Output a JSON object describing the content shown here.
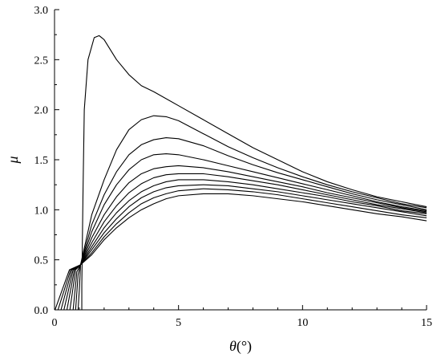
{
  "chart_data": {
    "type": "line",
    "xlabel_symbol": "θ",
    "xlabel_unit": "(°)",
    "ylabel": "μ",
    "xlim": [
      0,
      15
    ],
    "ylim": [
      0,
      3.0
    ],
    "x_ticks": [
      0,
      5,
      10,
      15
    ],
    "y_ticks": [
      "0.0",
      "0.5",
      "1.0",
      "1.5",
      "2.0",
      "2.5",
      "3.0"
    ],
    "grid": false,
    "legend": "none",
    "series": [
      {
        "points": [
          [
            1.1,
            0.0
          ],
          [
            1.1,
            0.25
          ],
          [
            1.15,
            1.2
          ],
          [
            1.2,
            2.0
          ],
          [
            1.35,
            2.5
          ],
          [
            1.6,
            2.72
          ],
          [
            1.8,
            2.74
          ],
          [
            2.0,
            2.7
          ],
          [
            2.5,
            2.5
          ],
          [
            3.0,
            2.35
          ],
          [
            3.5,
            2.24
          ],
          [
            4.0,
            2.18
          ],
          [
            5.0,
            2.04
          ],
          [
            6.0,
            1.9
          ],
          [
            7.0,
            1.76
          ],
          [
            8.0,
            1.62
          ],
          [
            9.0,
            1.5
          ],
          [
            10.0,
            1.38
          ],
          [
            11.0,
            1.28
          ],
          [
            12.0,
            1.2
          ],
          [
            13.0,
            1.13
          ],
          [
            14.0,
            1.08
          ],
          [
            15.0,
            1.03
          ]
        ]
      },
      {
        "points": [
          [
            0.95,
            0.0
          ],
          [
            1.0,
            0.2
          ],
          [
            1.05,
            0.45
          ],
          [
            1.5,
            0.95
          ],
          [
            2.0,
            1.3
          ],
          [
            2.5,
            1.6
          ],
          [
            3.0,
            1.8
          ],
          [
            3.5,
            1.9
          ],
          [
            4.0,
            1.94
          ],
          [
            4.5,
            1.93
          ],
          [
            5.0,
            1.89
          ],
          [
            6.0,
            1.76
          ],
          [
            7.0,
            1.63
          ],
          [
            8.0,
            1.52
          ],
          [
            9.0,
            1.42
          ],
          [
            10.0,
            1.33
          ],
          [
            11.0,
            1.25
          ],
          [
            12.0,
            1.18
          ],
          [
            13.0,
            1.12
          ],
          [
            14.0,
            1.06
          ],
          [
            15.0,
            1.02
          ]
        ]
      },
      {
        "points": [
          [
            0.85,
            0.0
          ],
          [
            0.95,
            0.35
          ],
          [
            1.05,
            0.45
          ],
          [
            1.5,
            0.85
          ],
          [
            2.0,
            1.15
          ],
          [
            2.5,
            1.38
          ],
          [
            3.0,
            1.55
          ],
          [
            3.5,
            1.65
          ],
          [
            4.0,
            1.7
          ],
          [
            4.5,
            1.72
          ],
          [
            5.0,
            1.71
          ],
          [
            6.0,
            1.64
          ],
          [
            7.0,
            1.54
          ],
          [
            8.0,
            1.45
          ],
          [
            9.0,
            1.37
          ],
          [
            10.0,
            1.3
          ],
          [
            11.0,
            1.23
          ],
          [
            12.0,
            1.16
          ],
          [
            13.0,
            1.1
          ],
          [
            14.0,
            1.05
          ],
          [
            15.0,
            1.0
          ]
        ]
      },
      {
        "points": [
          [
            0.75,
            0.0
          ],
          [
            0.9,
            0.38
          ],
          [
            1.05,
            0.45
          ],
          [
            1.5,
            0.78
          ],
          [
            2.0,
            1.05
          ],
          [
            2.5,
            1.25
          ],
          [
            3.0,
            1.4
          ],
          [
            3.5,
            1.5
          ],
          [
            4.0,
            1.55
          ],
          [
            4.5,
            1.56
          ],
          [
            5.0,
            1.55
          ],
          [
            6.0,
            1.5
          ],
          [
            7.0,
            1.44
          ],
          [
            8.0,
            1.38
          ],
          [
            9.0,
            1.32
          ],
          [
            10.0,
            1.26
          ],
          [
            11.0,
            1.2
          ],
          [
            12.0,
            1.14
          ],
          [
            13.0,
            1.08
          ],
          [
            14.0,
            1.03
          ],
          [
            15.0,
            0.99
          ]
        ]
      },
      {
        "points": [
          [
            0.62,
            0.0
          ],
          [
            0.85,
            0.4
          ],
          [
            1.05,
            0.45
          ],
          [
            1.5,
            0.72
          ],
          [
            2.0,
            0.95
          ],
          [
            2.5,
            1.13
          ],
          [
            3.0,
            1.27
          ],
          [
            3.5,
            1.36
          ],
          [
            4.0,
            1.41
          ],
          [
            4.5,
            1.43
          ],
          [
            5.0,
            1.44
          ],
          [
            6.0,
            1.42
          ],
          [
            7.0,
            1.38
          ],
          [
            8.0,
            1.33
          ],
          [
            9.0,
            1.28
          ],
          [
            10.0,
            1.23
          ],
          [
            11.0,
            1.17
          ],
          [
            12.0,
            1.12
          ],
          [
            13.0,
            1.07
          ],
          [
            14.0,
            1.02
          ],
          [
            15.0,
            0.98
          ]
        ]
      },
      {
        "points": [
          [
            0.5,
            0.0
          ],
          [
            0.8,
            0.4
          ],
          [
            1.05,
            0.45
          ],
          [
            1.5,
            0.67
          ],
          [
            2.0,
            0.88
          ],
          [
            2.5,
            1.04
          ],
          [
            3.0,
            1.17
          ],
          [
            3.5,
            1.26
          ],
          [
            4.0,
            1.32
          ],
          [
            4.5,
            1.35
          ],
          [
            5.0,
            1.36
          ],
          [
            6.0,
            1.36
          ],
          [
            7.0,
            1.33
          ],
          [
            8.0,
            1.29
          ],
          [
            9.0,
            1.25
          ],
          [
            10.0,
            1.2
          ],
          [
            11.0,
            1.15
          ],
          [
            12.0,
            1.1
          ],
          [
            13.0,
            1.05
          ],
          [
            14.0,
            1.01
          ],
          [
            15.0,
            0.97
          ]
        ]
      },
      {
        "points": [
          [
            0.38,
            0.0
          ],
          [
            0.75,
            0.4
          ],
          [
            1.05,
            0.45
          ],
          [
            1.5,
            0.63
          ],
          [
            2.0,
            0.82
          ],
          [
            2.5,
            0.97
          ],
          [
            3.0,
            1.09
          ],
          [
            3.5,
            1.18
          ],
          [
            4.0,
            1.24
          ],
          [
            4.5,
            1.28
          ],
          [
            5.0,
            1.3
          ],
          [
            6.0,
            1.3
          ],
          [
            7.0,
            1.28
          ],
          [
            8.0,
            1.25
          ],
          [
            9.0,
            1.21
          ],
          [
            10.0,
            1.17
          ],
          [
            11.0,
            1.13
          ],
          [
            12.0,
            1.08
          ],
          [
            13.0,
            1.04
          ],
          [
            14.0,
            0.99
          ],
          [
            15.0,
            0.96
          ]
        ]
      },
      {
        "points": [
          [
            0.26,
            0.0
          ],
          [
            0.7,
            0.4
          ],
          [
            1.05,
            0.45
          ],
          [
            1.5,
            0.6
          ],
          [
            2.0,
            0.77
          ],
          [
            2.5,
            0.91
          ],
          [
            3.0,
            1.03
          ],
          [
            3.5,
            1.12
          ],
          [
            4.0,
            1.18
          ],
          [
            4.5,
            1.22
          ],
          [
            5.0,
            1.24
          ],
          [
            6.0,
            1.25
          ],
          [
            7.0,
            1.24
          ],
          [
            8.0,
            1.21
          ],
          [
            9.0,
            1.18
          ],
          [
            10.0,
            1.14
          ],
          [
            11.0,
            1.1
          ],
          [
            12.0,
            1.06
          ],
          [
            13.0,
            1.02
          ],
          [
            14.0,
            0.98
          ],
          [
            15.0,
            0.94
          ]
        ]
      },
      {
        "points": [
          [
            0.14,
            0.0
          ],
          [
            0.65,
            0.4
          ],
          [
            1.05,
            0.45
          ],
          [
            1.5,
            0.57
          ],
          [
            2.0,
            0.73
          ],
          [
            2.5,
            0.86
          ],
          [
            3.0,
            0.97
          ],
          [
            3.5,
            1.06
          ],
          [
            4.0,
            1.12
          ],
          [
            4.5,
            1.16
          ],
          [
            5.0,
            1.19
          ],
          [
            6.0,
            1.21
          ],
          [
            7.0,
            1.2
          ],
          [
            8.0,
            1.18
          ],
          [
            9.0,
            1.15
          ],
          [
            10.0,
            1.11
          ],
          [
            11.0,
            1.07
          ],
          [
            12.0,
            1.03
          ],
          [
            13.0,
            0.99
          ],
          [
            14.0,
            0.95
          ],
          [
            15.0,
            0.92
          ]
        ]
      },
      {
        "points": [
          [
            0.02,
            0.0
          ],
          [
            0.6,
            0.4
          ],
          [
            1.05,
            0.45
          ],
          [
            1.5,
            0.55
          ],
          [
            2.0,
            0.7
          ],
          [
            2.5,
            0.82
          ],
          [
            3.0,
            0.92
          ],
          [
            3.5,
            1.0
          ],
          [
            4.0,
            1.06
          ],
          [
            4.5,
            1.11
          ],
          [
            5.0,
            1.14
          ],
          [
            6.0,
            1.16
          ],
          [
            7.0,
            1.16
          ],
          [
            8.0,
            1.14
          ],
          [
            9.0,
            1.11
          ],
          [
            10.0,
            1.08
          ],
          [
            11.0,
            1.04
          ],
          [
            12.0,
            1.0
          ],
          [
            13.0,
            0.96
          ],
          [
            14.0,
            0.93
          ],
          [
            15.0,
            0.89
          ]
        ]
      }
    ]
  }
}
